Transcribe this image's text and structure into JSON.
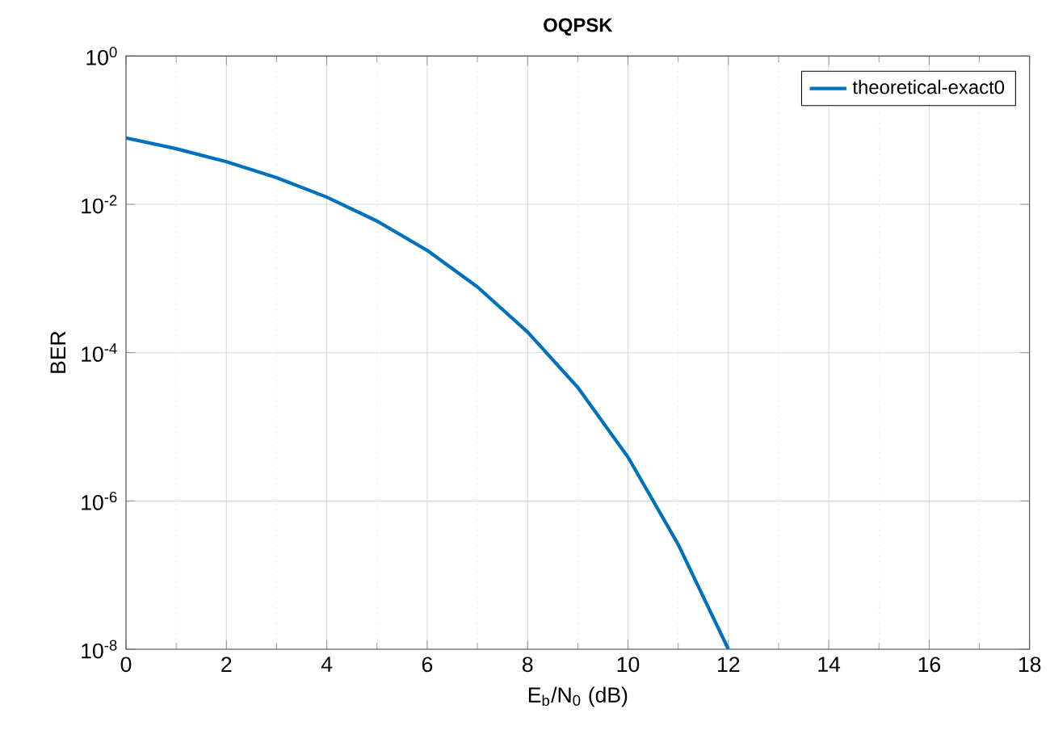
{
  "chart_data": {
    "type": "line",
    "title": "**OQPSK**",
    "xlabel": "E$_{b}$/N$_{0}$ (dB)",
    "ylabel": "BER",
    "x": [
      0,
      1,
      2,
      3,
      4,
      5,
      6,
      7,
      8,
      9,
      10,
      11,
      12
    ],
    "series": [
      {
        "name": "theoretical-exact0",
        "color": "#0072bd",
        "values": [
          0.0786,
          0.0563,
          0.0375,
          0.0229,
          0.0125,
          0.00595,
          0.00239,
          0.00077,
          0.00019,
          3.4e-05,
          3.9e-06,
          2.6e-07,
          1e-08
        ]
      }
    ],
    "log": "y",
    "grid": true,
    "legend": "top right",
    "marker": "none",
    "line_style": "solid",
    "xlim": [
      0,
      18
    ],
    "xticks": [
      0,
      2,
      4,
      6,
      8,
      10,
      12,
      14,
      16,
      18
    ],
    "ylim": [
      1e-08,
      1
    ],
    "yticks": [
      {
        "value": 1e-08,
        "label": "10$^{-8}$"
      },
      {
        "value": 1e-06,
        "label": "10$^{-6}$"
      },
      {
        "value": 0.0001,
        "label": "10$^{-4}$"
      },
      {
        "value": 0.01,
        "label": "10$^{-2}$"
      },
      {
        "value": 1,
        "label": "10$^{0}$"
      }
    ]
  }
}
